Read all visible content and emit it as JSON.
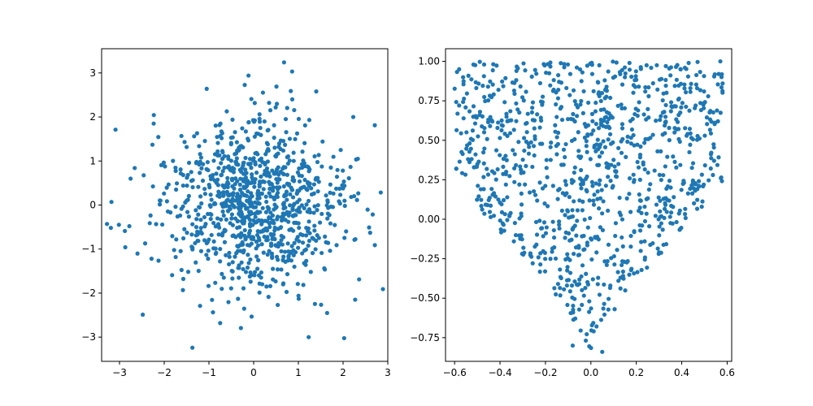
{
  "figure": {
    "background": "#ffffff",
    "marker_color": "#1f77b4"
  },
  "chart_data": [
    {
      "type": "scatter",
      "title": "",
      "xlabel": "",
      "ylabel": "",
      "xlim": [
        -3.4,
        3.0
      ],
      "ylim": [
        -3.55,
        3.55
      ],
      "xticks": [
        -3,
        -2,
        -1,
        0,
        1,
        2,
        3
      ],
      "yticks": [
        -3,
        -2,
        -1,
        0,
        1,
        2,
        3
      ],
      "tick_labels_x": [
        "−3",
        "−2",
        "−1",
        "0",
        "1",
        "2",
        "3"
      ],
      "tick_labels_y": [
        "−3",
        "−2",
        "−1",
        "0",
        "1",
        "2",
        "3"
      ],
      "grid": false,
      "point_count_approx": 1000,
      "distribution": "approximately bivariate standard normal centered at (0, 0)",
      "notable_points": [
        {
          "x": 0.68,
          "y": 3.24
        },
        {
          "x": -3.18,
          "y": 0.07
        },
        {
          "x": -3.28,
          "y": -0.43
        },
        {
          "x": -1.37,
          "y": -3.24
        },
        {
          "x": 1.23,
          "y": -3.0
        },
        {
          "x": -2.48,
          "y": -2.49
        },
        {
          "x": 2.27,
          "y": -2.15
        },
        {
          "x": 2.71,
          "y": -0.91
        },
        {
          "x": 2.33,
          "y": 1.05
        },
        {
          "x": -2.78,
          "y": -0.48
        },
        {
          "x": -2.66,
          "y": 0.84
        },
        {
          "x": 0.51,
          "y": 2.69
        },
        {
          "x": -1.05,
          "y": 2.64
        },
        {
          "x": 1.4,
          "y": 2.58
        }
      ]
    },
    {
      "type": "scatter",
      "title": "",
      "xlabel": "",
      "ylabel": "",
      "xlim": [
        -0.64,
        0.62
      ],
      "ylim": [
        -0.9,
        1.08
      ],
      "xticks": [
        -0.6,
        -0.4,
        -0.2,
        0.0,
        0.2,
        0.4,
        0.6
      ],
      "yticks": [
        -0.75,
        -0.5,
        -0.25,
        0.0,
        0.25,
        0.5,
        0.75,
        1.0
      ],
      "tick_labels_x": [
        "−0.6",
        "−0.4",
        "−0.2",
        "0.0",
        "0.2",
        "0.4",
        "0.6"
      ],
      "tick_labels_y": [
        "−0.75",
        "−0.50",
        "−0.25",
        "0.00",
        "0.25",
        "0.50",
        "0.75",
        "1.00"
      ],
      "grid": false,
      "point_count_approx": 1000,
      "distribution": "uniform within a V/parabolic region: y ranges from about 1.6*|x|^0.8 - 0.85 up to 1.0",
      "notable_points": [
        {
          "x": 0.05,
          "y": -0.84
        },
        {
          "x": -0.08,
          "y": -0.8
        },
        {
          "x": -0.58,
          "y": 0.95
        },
        {
          "x": 0.57,
          "y": 1.0
        },
        {
          "x": 0.58,
          "y": 0.86
        },
        {
          "x": 0.17,
          "y": 0.99
        },
        {
          "x": -0.47,
          "y": 0.98
        },
        {
          "x": 0.33,
          "y": 0.97
        }
      ]
    }
  ]
}
